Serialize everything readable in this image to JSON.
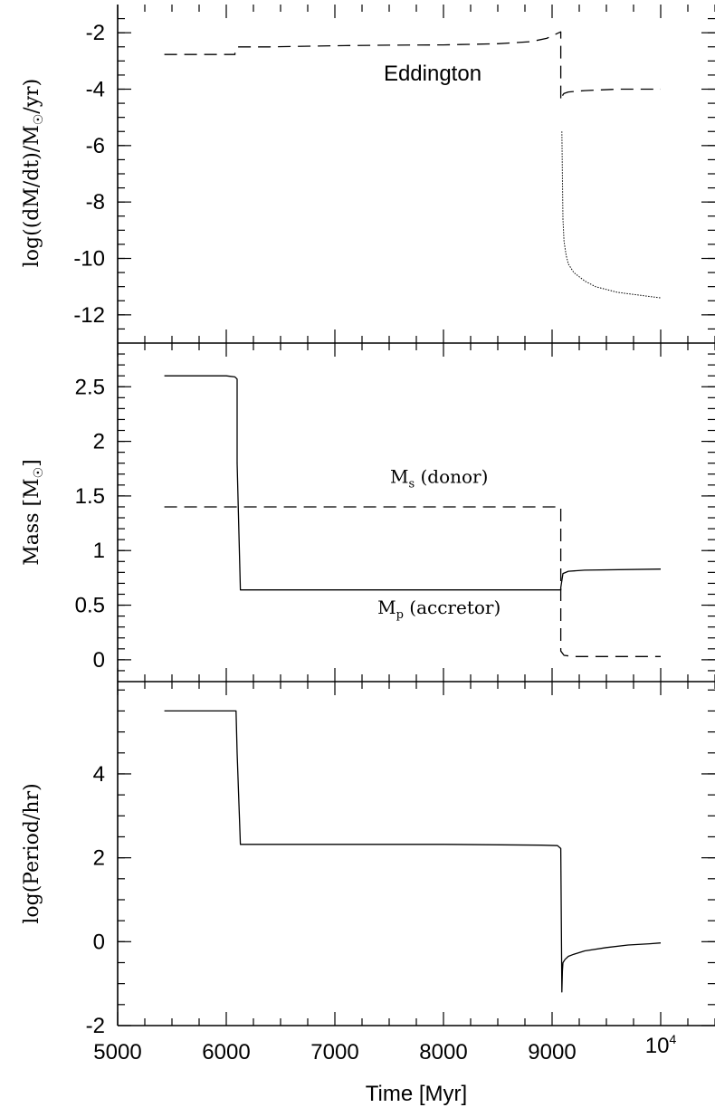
{
  "chart_data": [
    {
      "type": "line",
      "panel": "top",
      "ylabel_main": "log((dM/dt)/M",
      "ylabel_tail": "/yr)",
      "ylim": [
        -13,
        -1
      ],
      "xlim": [
        5000,
        10500
      ],
      "yticks_major": [
        -2,
        -4,
        -6,
        -8,
        -10,
        -12
      ],
      "yticks_minor_step": 0.5,
      "tick_labels": [
        "-2",
        "-4",
        "-6",
        "-8",
        "-10",
        "-12"
      ],
      "annotations": [
        {
          "text": "Eddington",
          "x": 7900,
          "y": -3.7
        }
      ],
      "series": [
        {
          "style": "dashed",
          "x": [
            5430,
            6080,
            6080,
            6100,
            6400,
            7000,
            7500,
            8000,
            8500,
            8800,
            8950,
            9050,
            9080,
            9080,
            9100,
            9110,
            9150,
            9300,
            9600,
            10000
          ],
          "y": [
            -2.77,
            -2.77,
            -2.68,
            -2.5,
            -2.5,
            -2.46,
            -2.44,
            -2.43,
            -2.39,
            -2.32,
            -2.2,
            -2.02,
            -1.97,
            -4.4,
            -4.2,
            -4.15,
            -4.1,
            -4.05,
            -4.0,
            -4.0
          ]
        },
        {
          "style": "dotted",
          "x": [
            9090,
            9100,
            9110,
            9130,
            9150,
            9200,
            9300,
            9400,
            9500,
            9600,
            9700,
            9800,
            9900,
            10000
          ],
          "y": [
            -5.5,
            -8.6,
            -9.4,
            -9.9,
            -10.2,
            -10.5,
            -10.8,
            -11.0,
            -11.1,
            -11.2,
            -11.25,
            -11.3,
            -11.35,
            -11.4
          ]
        }
      ]
    },
    {
      "type": "line",
      "panel": "middle",
      "ylabel_main": "Mass [M",
      "ylabel_tail": "]",
      "ylim": [
        -0.2,
        2.9
      ],
      "xlim": [
        5000,
        10500
      ],
      "yticks_major": [
        0,
        0.5,
        1,
        1.5,
        2,
        2.5
      ],
      "yticks_minor_step": 0.1,
      "tick_labels": [
        "0",
        "0.5",
        "1",
        "1.5",
        "2",
        "2.5"
      ],
      "annotations": [
        {
          "text": "M",
          "sub": "s",
          "tail": " (donor)",
          "x": 7960,
          "y": 1.62
        },
        {
          "text": "M",
          "sub": "p",
          "tail": " (accretor)",
          "x": 7960,
          "y": 0.42
        }
      ],
      "series": [
        {
          "name": "M_p (accretor)",
          "style": "solid",
          "x": [
            5430,
            6000,
            6080,
            6100,
            6100,
            6130,
            9000,
            9080,
            9080,
            9100,
            9150,
            9300,
            10000
          ],
          "y": [
            2.6,
            2.6,
            2.59,
            2.57,
            1.8,
            0.64,
            0.64,
            0.64,
            0.66,
            0.79,
            0.81,
            0.82,
            0.83
          ]
        },
        {
          "name": "M_s (donor)",
          "style": "dashed",
          "x": [
            5430,
            9080,
            9080,
            9110,
            9200,
            10000
          ],
          "y": [
            1.4,
            1.4,
            0.08,
            0.04,
            0.03,
            0.03
          ]
        }
      ]
    },
    {
      "type": "line",
      "panel": "bottom",
      "ylabel_main": "log(Period/hr)",
      "ylabel_tail": "",
      "xlabel": "Time [Myr]",
      "ylim": [
        -2,
        6.2
      ],
      "xlim": [
        5000,
        10500
      ],
      "xticks_major": [
        5000,
        6000,
        7000,
        8000,
        9000,
        10000
      ],
      "x_tick_labels": [
        "5000",
        "6000",
        "7000",
        "8000",
        "9000",
        "10"
      ],
      "x_tick_last_sup": "4",
      "yticks_major": [
        -2,
        0,
        2,
        4
      ],
      "yticks_minor_step": 0.5,
      "tick_labels": [
        "-2",
        "0",
        "2",
        "4"
      ],
      "series": [
        {
          "style": "solid",
          "x": [
            5430,
            6090,
            6100,
            6130,
            8000,
            8900,
            9050,
            9080,
            9085,
            9090,
            9095,
            9100,
            9120,
            9150,
            9200,
            9300,
            9500,
            9700,
            9900,
            10000
          ],
          "y": [
            5.5,
            5.5,
            4.5,
            2.32,
            2.32,
            2.3,
            2.29,
            2.22,
            0.5,
            -1.2,
            -0.7,
            -0.5,
            -0.42,
            -0.35,
            -0.3,
            -0.22,
            -0.14,
            -0.08,
            -0.05,
            -0.03
          ]
        }
      ]
    }
  ]
}
